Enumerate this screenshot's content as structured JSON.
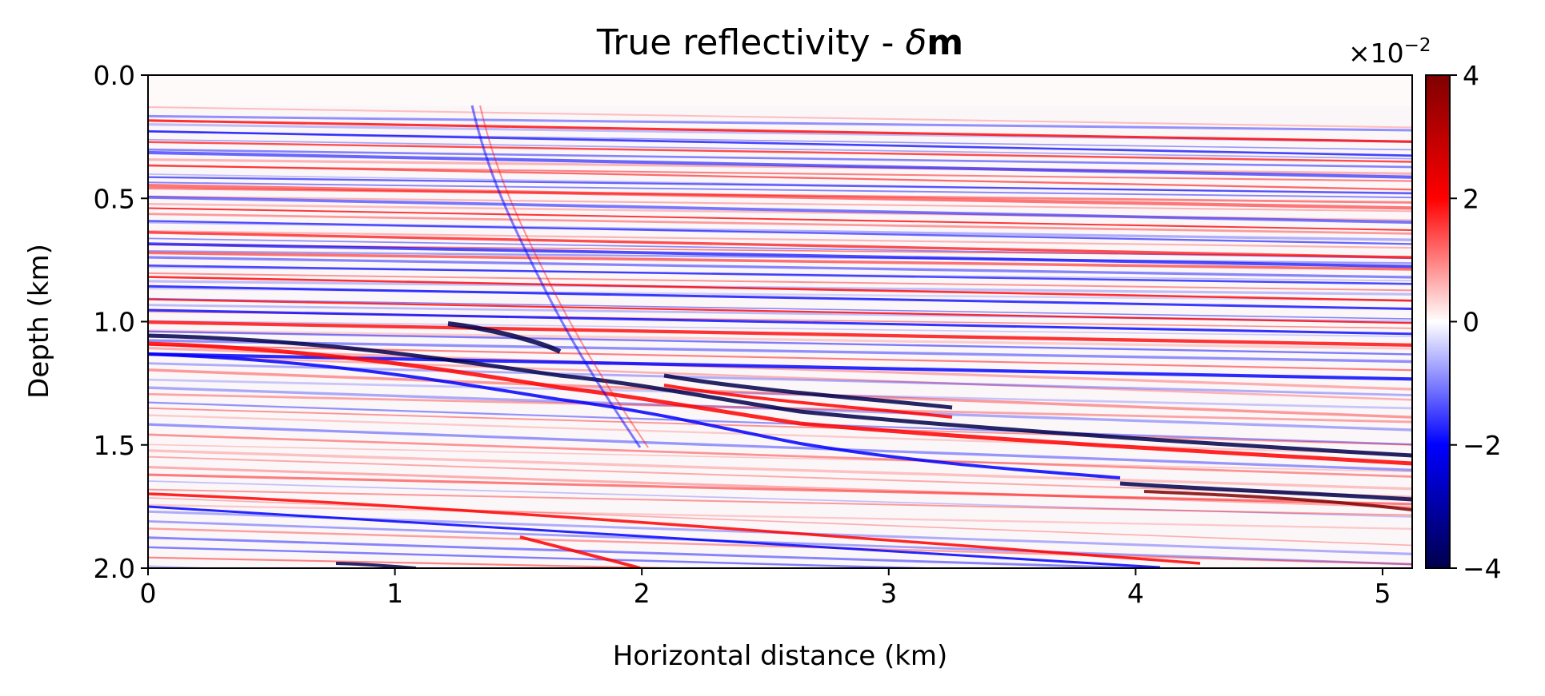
{
  "chart_data": {
    "type": "heatmap",
    "title_main": "True reflectivity - ",
    "title_symbol_italic": "δ",
    "title_symbol_bold": "m",
    "xlabel": "Horizontal distance (km)",
    "ylabel": "Depth (km)",
    "xlim": [
      0,
      5.12
    ],
    "ylim": [
      2.0,
      0.0
    ],
    "xticks": [
      0,
      1,
      2,
      3,
      4,
      5
    ],
    "xtick_labels": [
      "0",
      "1",
      "2",
      "3",
      "4",
      "5"
    ],
    "yticks": [
      0.0,
      0.5,
      1.0,
      1.5,
      2.0
    ],
    "ytick_labels": [
      "0.0",
      "0.5",
      "1.0",
      "1.5",
      "2.0"
    ],
    "colorbar": {
      "colormap": "seismic",
      "range": [
        -4,
        4
      ],
      "ticks": [
        4,
        2,
        0,
        -2,
        -4
      ],
      "tick_labels": [
        "4",
        "2",
        "0",
        "−2",
        "−4"
      ],
      "scale_label": "×10",
      "scale_exponent": "−2"
    },
    "colors": {
      "negative": "#00004c",
      "mid_negative": "#0000ff",
      "zero": "#ffffff",
      "mid_positive": "#ff0000",
      "positive": "#7f0000"
    },
    "grid": false
  }
}
